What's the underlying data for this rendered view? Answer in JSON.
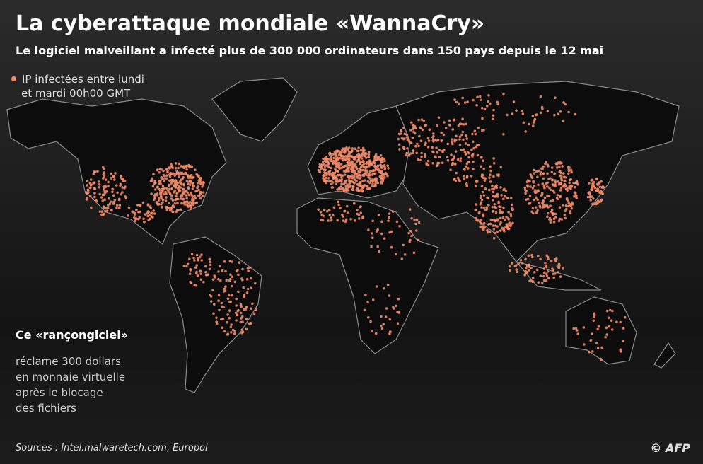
{
  "header": {
    "title": "La cyberattaque mondiale «WannaCry»",
    "subtitle": "Le logiciel malveillant a infecté plus de 300 000 ordinateurs dans 150 pays depuis le 12 mai"
  },
  "legend": {
    "lines": [
      "IP infectées entre lundi",
      "et mardi 00h00 GMT"
    ]
  },
  "note": {
    "heading": "Ce «rançongiciel»",
    "lines": [
      "réclame 300 dollars",
      "en monnaie virtuelle",
      "après le blocage",
      "des fichiers"
    ]
  },
  "footer": {
    "source": "Sources : Intel.malwaretech.com, Europol",
    "credit": "© AFP"
  }
}
